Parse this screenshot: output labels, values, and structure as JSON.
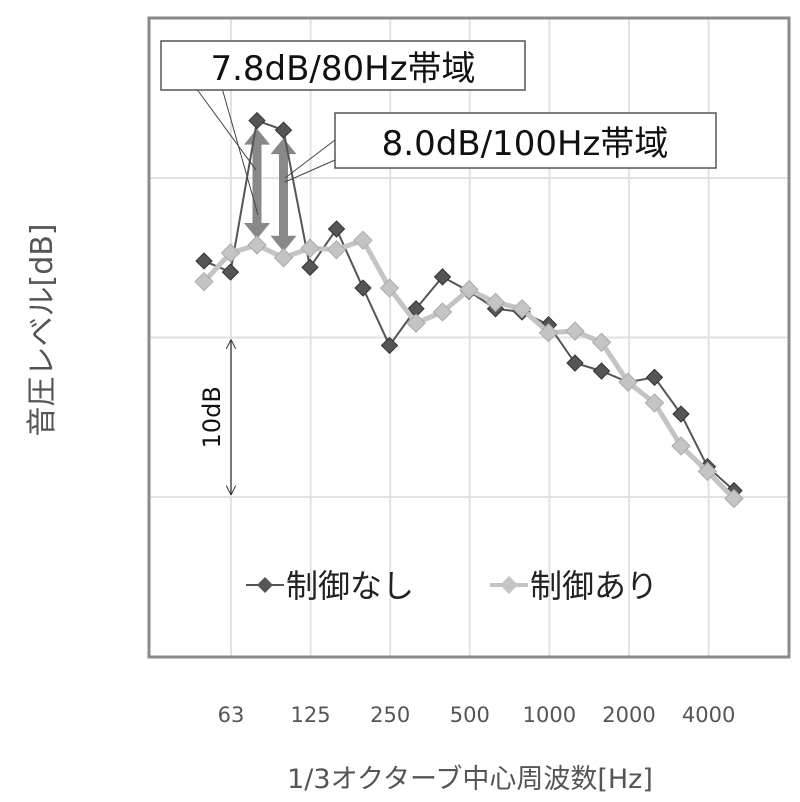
{
  "chart_data": {
    "type": "line",
    "title": "",
    "xlabel": "1/3オクターブ中心周波数[Hz]",
    "ylabel": "音圧レベル[dB]",
    "x": [
      "50",
      "63",
      "80",
      "100",
      "125",
      "160",
      "200",
      "250",
      "315",
      "400",
      "500",
      "630",
      "800",
      "1000",
      "1250",
      "1600",
      "2000",
      "2500",
      "3150",
      "4000",
      "5000"
    ],
    "x_tick_labels": [
      "63",
      "125",
      "250",
      "500",
      "1000",
      "2000",
      "4000"
    ],
    "ylim": [
      -10,
      30
    ],
    "y_units": "relative dB (no numeric ticks shown)",
    "grid": true,
    "legend_position": "bottom-inside",
    "series": [
      {
        "name": "制御なし",
        "color": "#555555",
        "marker": "diamond",
        "values": [
          14.8,
          14.1,
          23.6,
          23.0,
          14.4,
          16.8,
          13.1,
          9.5,
          11.8,
          13.8,
          12.9,
          11.8,
          11.6,
          10.8,
          8.4,
          7.9,
          7.2,
          7.5,
          5.2,
          1.9,
          0.4
        ]
      },
      {
        "name": "制御あり",
        "color": "#bbbbbb",
        "marker": "diamond",
        "values": [
          13.5,
          15.3,
          15.8,
          15.0,
          15.6,
          15.5,
          16.1,
          13.1,
          10.9,
          11.6,
          13.0,
          12.2,
          11.8,
          10.3,
          10.4,
          9.7,
          7.2,
          5.9,
          3.2,
          1.6,
          -0.1
        ]
      }
    ],
    "annotations": [
      {
        "text": "7.8dB/80Hz帯域",
        "band": "80"
      },
      {
        "text": "8.0dB/100Hz帯域",
        "band": "100"
      },
      {
        "text": "10dB",
        "from": 0,
        "to": 10
      }
    ]
  }
}
